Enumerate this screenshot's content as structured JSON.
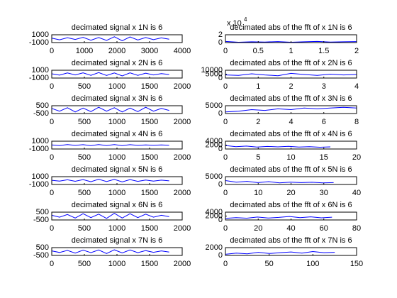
{
  "chart_data": [
    {
      "type": "line",
      "title": "decimated signal x 1N is 6",
      "color": "#0000ff",
      "xlim": [
        0,
        4000
      ],
      "xticks": [
        0,
        1000,
        2000,
        3000,
        4000
      ],
      "ylim": [
        -1000,
        1000
      ],
      "yticks": [
        -1000,
        1000
      ],
      "x": [
        0,
        240,
        480,
        720,
        960,
        1200,
        1440,
        1680,
        1920,
        2160,
        2400,
        2640,
        2880,
        3120,
        3360,
        3600
      ],
      "values": [
        120,
        -300,
        250,
        -200,
        350,
        -400,
        300,
        -450,
        500,
        -550,
        450,
        -350,
        300,
        -250,
        200,
        -150
      ]
    },
    {
      "type": "line",
      "title": "decimated abs of the fft of x 1N is 6",
      "color": "#0000ff",
      "xlim": [
        0,
        2
      ],
      "xticks": [
        0,
        0.5,
        1,
        1.5,
        2
      ],
      "ylim": [
        0,
        2
      ],
      "yticks": [
        0,
        2
      ],
      "y_exponent": {
        "base": "x 10",
        "power": "4"
      },
      "x": [
        0,
        0.2,
        0.4,
        0.6,
        0.8,
        1,
        1.2,
        1.4,
        1.6,
        1.8,
        2
      ],
      "values": [
        0.3,
        0.1,
        0.2,
        0.15,
        0.25,
        0.1,
        0.2,
        0.3,
        0.15,
        0.2,
        0.25
      ]
    },
    {
      "type": "line",
      "title": "decimated signal x 2N is 6",
      "color": "#0000ff",
      "xlim": [
        0,
        2000
      ],
      "xticks": [
        0,
        500,
        1000,
        1500,
        2000
      ],
      "ylim": [
        -1000,
        1000
      ],
      "yticks": [
        -1000,
        1000
      ],
      "x": [
        0,
        120,
        240,
        360,
        480,
        600,
        720,
        840,
        960,
        1080,
        1200,
        1320,
        1440,
        1560,
        1680,
        1800
      ],
      "values": [
        100,
        -250,
        300,
        -200,
        350,
        -300,
        400,
        -350,
        300,
        -450,
        350,
        -300,
        250,
        -200,
        150,
        -100
      ]
    },
    {
      "type": "line",
      "title": "decimated abs of the fft of x 2N is 6",
      "color": "#0000ff",
      "xlim": [
        0,
        4
      ],
      "xticks": [
        0,
        1,
        2,
        3,
        4
      ],
      "ylim": [
        0,
        10000
      ],
      "yticks": [
        0,
        5000,
        10000
      ],
      "x": [
        0,
        0.4,
        0.8,
        1.2,
        1.6,
        2,
        2.4,
        2.8,
        3.2,
        3.6,
        4
      ],
      "values": [
        4000,
        3500,
        5500,
        4000,
        3000,
        6000,
        4500,
        3500,
        5000,
        4000,
        4500
      ]
    },
    {
      "type": "line",
      "title": "decimated signal x 3N is 6",
      "color": "#0000ff",
      "xlim": [
        0,
        2000
      ],
      "xticks": [
        0,
        500,
        1000,
        1500,
        2000
      ],
      "ylim": [
        -500,
        500
      ],
      "yticks": [
        -500,
        500
      ],
      "x": [
        0,
        120,
        240,
        360,
        480,
        600,
        720,
        840,
        960,
        1080,
        1200,
        1320,
        1440,
        1560,
        1680,
        1800
      ],
      "values": [
        150,
        -200,
        250,
        -300,
        200,
        -250,
        300,
        -200,
        250,
        -300,
        200,
        -250,
        300,
        -200,
        150,
        -100
      ]
    },
    {
      "type": "line",
      "title": "decimated abs of the fft of x 3N is 6",
      "color": "#0000ff",
      "xlim": [
        0,
        8
      ],
      "xticks": [
        0,
        2,
        4,
        6,
        8
      ],
      "ylim": [
        0,
        5000
      ],
      "yticks": [
        0,
        5000
      ],
      "x": [
        0,
        0.8,
        1.6,
        2.4,
        3.2,
        4,
        4.8,
        5.6,
        6.4,
        7.2,
        8
      ],
      "values": [
        1000,
        1500,
        2500,
        2000,
        3000,
        2500,
        3500,
        3000,
        3500,
        4000,
        3500
      ]
    },
    {
      "type": "line",
      "title": "decimated signal x 4N is 6",
      "color": "#0000ff",
      "xlim": [
        0,
        2000
      ],
      "xticks": [
        0,
        500,
        1000,
        1500,
        2000
      ],
      "ylim": [
        -1000,
        1000
      ],
      "yticks": [
        -1000,
        1000
      ],
      "x": [
        0,
        120,
        240,
        360,
        480,
        600,
        720,
        840,
        960,
        1080,
        1200,
        1320,
        1440,
        1560,
        1680,
        1800
      ],
      "values": [
        50,
        -100,
        150,
        -80,
        100,
        -150,
        120,
        -100,
        150,
        -120,
        100,
        -80,
        60,
        -50,
        40,
        -30
      ]
    },
    {
      "type": "line",
      "title": "decimated abs of the fft of x 4N is 6",
      "color": "#0000ff",
      "xlim": [
        0,
        20
      ],
      "xticks": [
        0,
        5,
        10,
        15,
        20
      ],
      "ylim": [
        0,
        4000
      ],
      "yticks": [
        0,
        2000,
        4000
      ],
      "x": [
        0,
        1.6,
        3.2,
        4.8,
        6.4,
        8,
        9.6,
        11.2,
        12.8,
        14.4,
        16
      ],
      "values": [
        1800,
        1200,
        1500,
        1000,
        1300,
        1100,
        1400,
        1000,
        1200,
        900,
        1100
      ]
    },
    {
      "type": "line",
      "title": "decimated signal x 5N is 6",
      "color": "#0000ff",
      "xlim": [
        0,
        2000
      ],
      "xticks": [
        0,
        500,
        1000,
        1500,
        2000
      ],
      "ylim": [
        -1000,
        1000
      ],
      "yticks": [
        -1000,
        1000
      ],
      "x": [
        0,
        120,
        240,
        360,
        480,
        600,
        720,
        840,
        960,
        1080,
        1200,
        1320,
        1440,
        1560,
        1680,
        1800
      ],
      "values": [
        80,
        -150,
        200,
        -180,
        250,
        -300,
        350,
        -250,
        300,
        -350,
        250,
        -200,
        150,
        -120,
        100,
        -80
      ]
    },
    {
      "type": "line",
      "title": "decimated abs of the fft of x 5N is 6",
      "color": "#0000ff",
      "xlim": [
        0,
        40
      ],
      "xticks": [
        0,
        10,
        20,
        30,
        40
      ],
      "ylim": [
        0,
        5000
      ],
      "yticks": [
        0,
        5000
      ],
      "x": [
        0,
        3.3,
        6.6,
        9.9,
        13.2,
        16.5,
        19.8,
        23.1,
        26.4,
        29.7,
        33
      ],
      "values": [
        2500,
        1500,
        2000,
        1200,
        1800,
        1000,
        1500,
        1200,
        1400,
        1000,
        1200
      ]
    },
    {
      "type": "line",
      "title": "decimated signal x 6N is 6",
      "color": "#0000ff",
      "xlim": [
        0,
        2000
      ],
      "xticks": [
        0,
        500,
        1000,
        1500,
        2000
      ],
      "ylim": [
        -500,
        500
      ],
      "yticks": [
        -500,
        500
      ],
      "x": [
        0,
        120,
        240,
        360,
        480,
        600,
        720,
        840,
        960,
        1080,
        1200,
        1320,
        1440,
        1560,
        1680,
        1800
      ],
      "values": [
        100,
        -150,
        200,
        -250,
        300,
        -200,
        250,
        -300,
        350,
        -250,
        300,
        -200,
        250,
        -150,
        100,
        -80
      ]
    },
    {
      "type": "line",
      "title": "decimated abs of the fft of x 6N is 6",
      "color": "#0000ff",
      "xlim": [
        0,
        80
      ],
      "xticks": [
        0,
        20,
        40,
        60,
        80
      ],
      "ylim": [
        0,
        4000
      ],
      "yticks": [
        0,
        2000,
        4000
      ],
      "x": [
        0,
        6.5,
        13,
        19.5,
        26,
        32.5,
        39,
        45.5,
        52,
        58.5,
        65
      ],
      "values": [
        800,
        1200,
        900,
        1500,
        1000,
        1300,
        1800,
        1200,
        1600,
        1100,
        1400
      ]
    },
    {
      "type": "line",
      "title": "decimated signal x 7N is 6",
      "color": "#0000ff",
      "xlim": [
        0,
        2000
      ],
      "xticks": [
        0,
        500,
        1000,
        1500,
        2000
      ],
      "ylim": [
        -500,
        500
      ],
      "yticks": [
        -500,
        500
      ],
      "x": [
        0,
        120,
        240,
        360,
        480,
        600,
        720,
        840,
        960,
        1080,
        1200,
        1320,
        1440,
        1560,
        1680,
        1800
      ],
      "values": [
        80,
        -120,
        150,
        -200,
        180,
        -150,
        200,
        -250,
        220,
        -180,
        200,
        -150,
        120,
        -100,
        80,
        -60
      ]
    },
    {
      "type": "line",
      "title": "decimated abs of the fft of x 7N is 6",
      "color": "#0000ff",
      "xlim": [
        0,
        150
      ],
      "xticks": [
        0,
        50,
        100,
        150
      ],
      "ylim": [
        0,
        2000
      ],
      "yticks": [
        0,
        2000
      ],
      "x": [
        0,
        12.5,
        25,
        37.5,
        50,
        62.5,
        75,
        87.5,
        100,
        112.5,
        125
      ],
      "values": [
        300,
        600,
        400,
        800,
        500,
        700,
        900,
        600,
        1000,
        700,
        800
      ]
    }
  ]
}
